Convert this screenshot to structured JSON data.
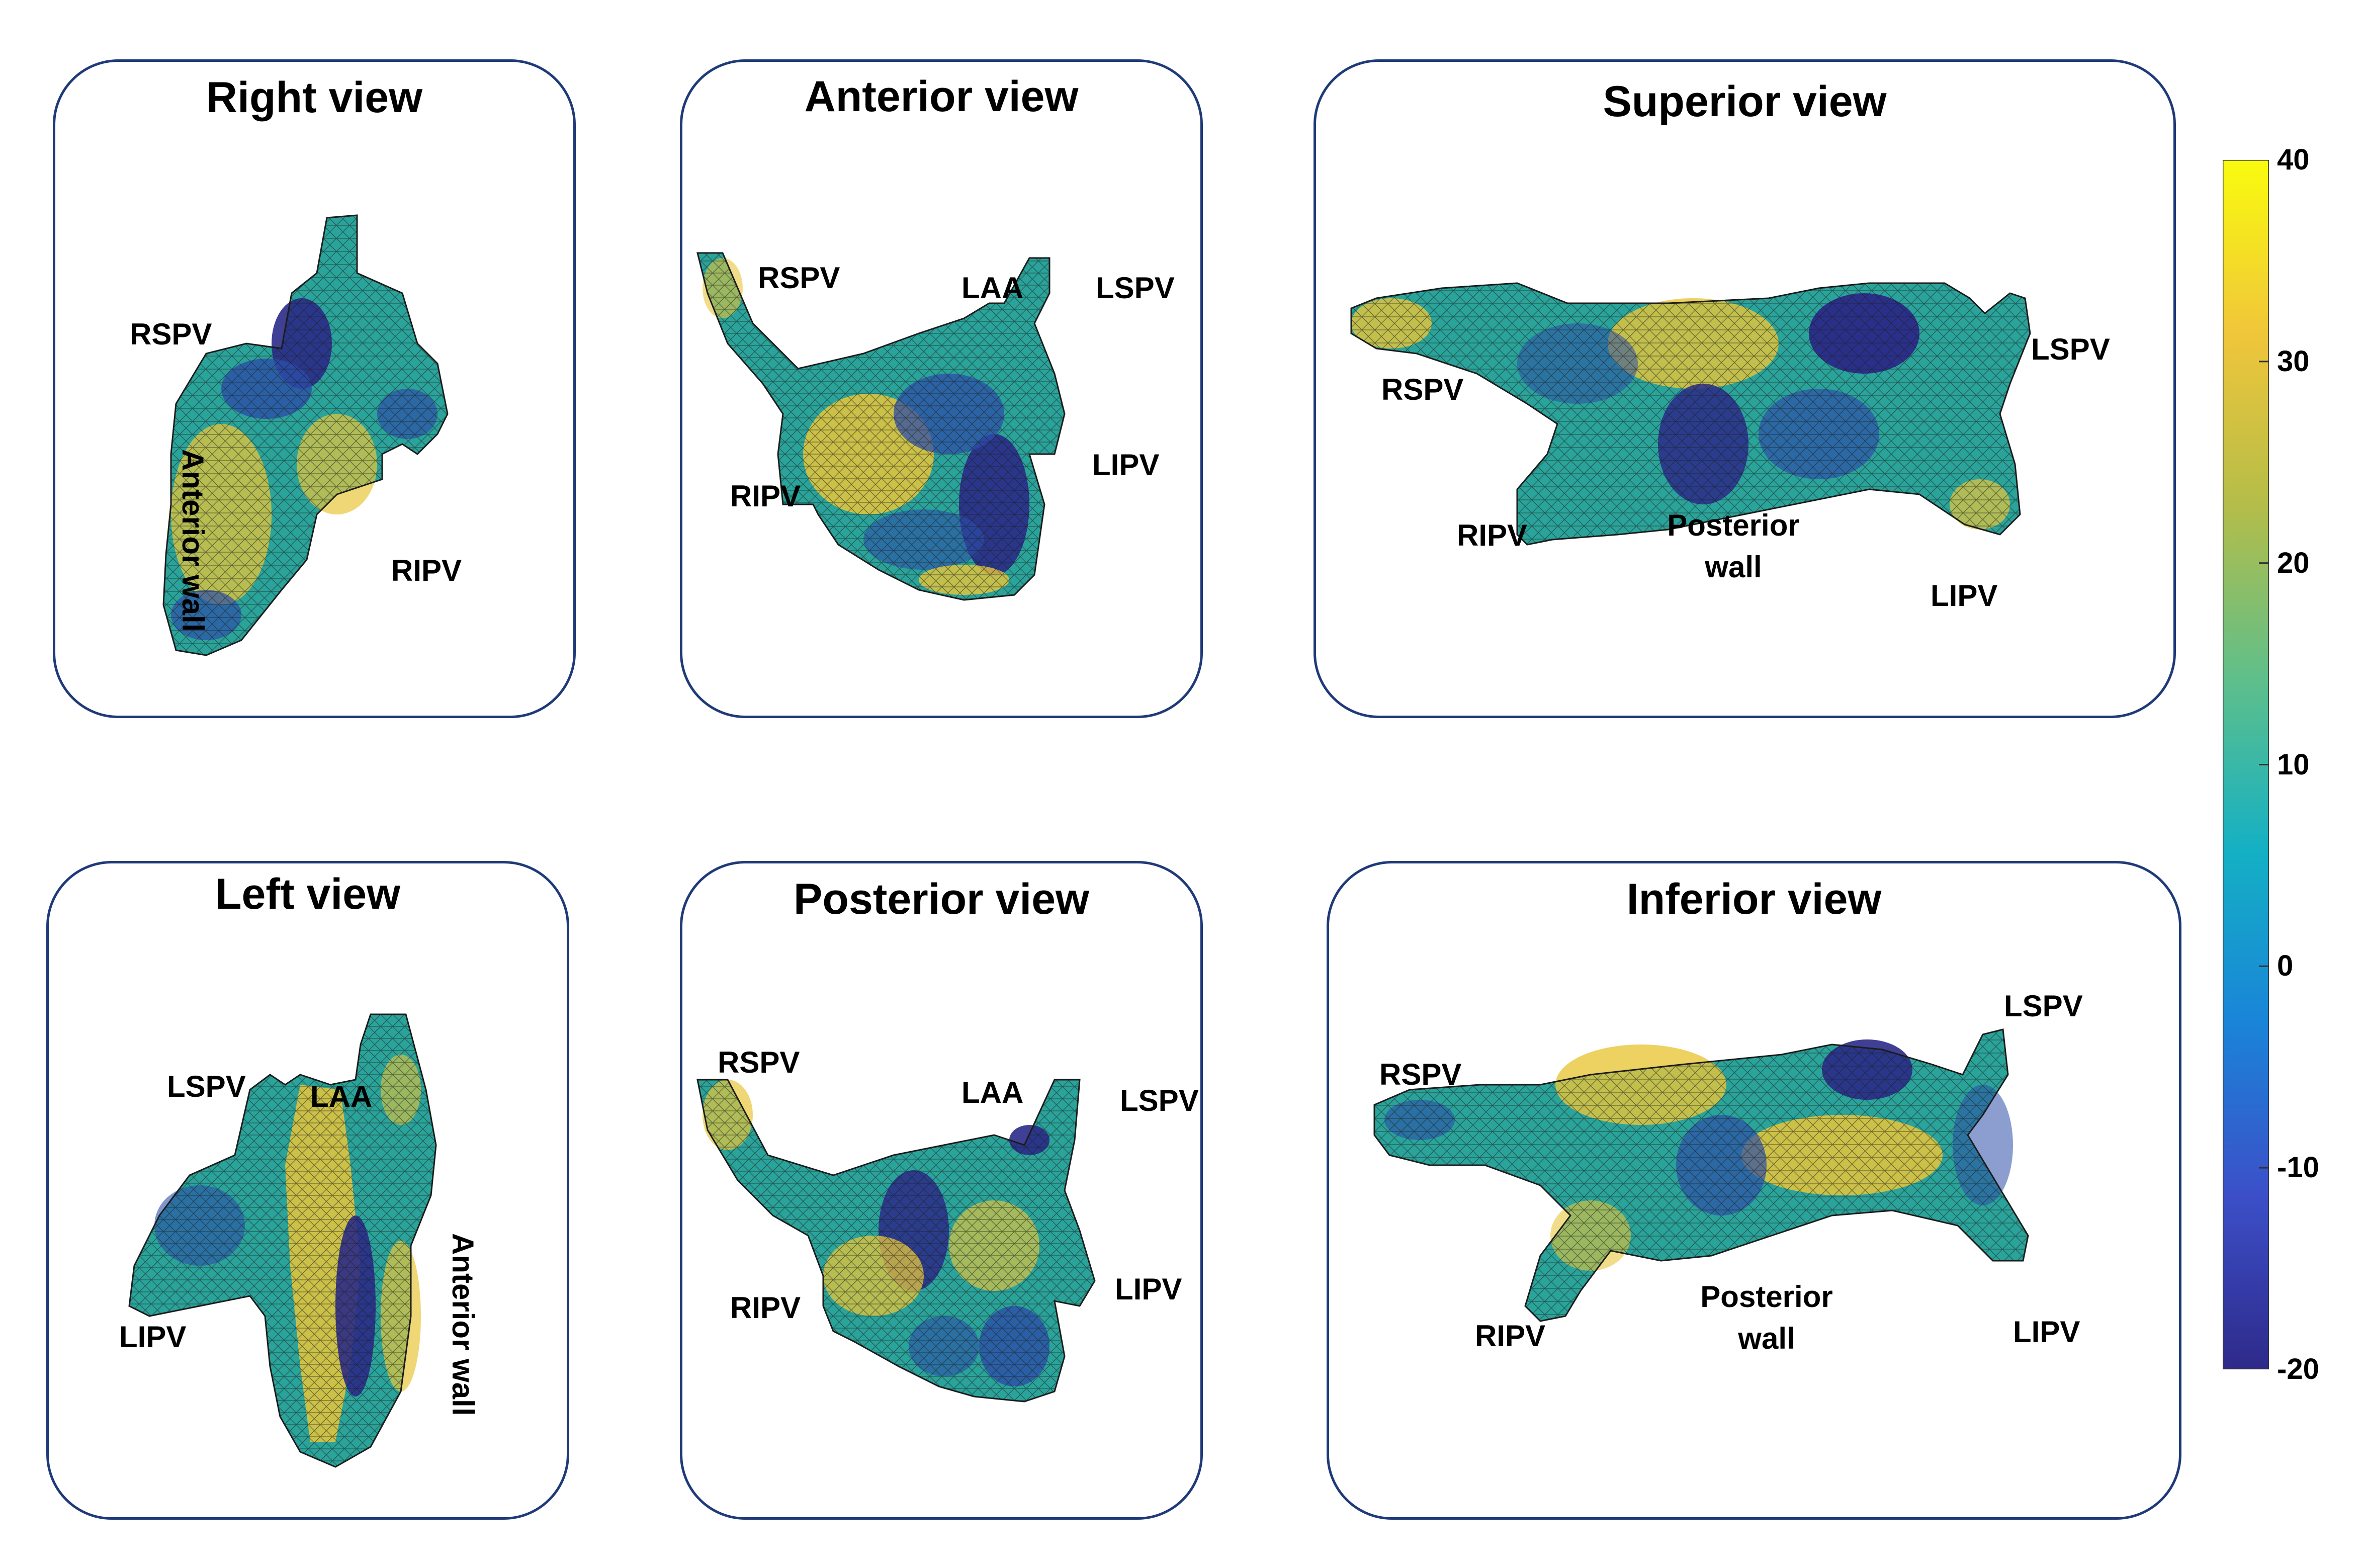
{
  "panels": {
    "right": {
      "title": "Right view",
      "labels": {
        "rspv": "RSPV",
        "ripv": "RIPV",
        "wall": "Anterior wall"
      }
    },
    "anterior": {
      "title": "Anterior view",
      "labels": {
        "rspv": "RSPV",
        "laa": "LAA",
        "lspv": "LSPV",
        "ripv": "RIPV",
        "lipv": "LIPV"
      }
    },
    "superior": {
      "title": "Superior view",
      "labels": {
        "rspv": "RSPV",
        "lspv": "LSPV",
        "ripv": "RIPV",
        "lipv": "LIPV",
        "wall1": "Posterior",
        "wall2": "wall"
      }
    },
    "left": {
      "title": "Left view",
      "labels": {
        "lspv": "LSPV",
        "laa": "LAA",
        "lipv": "LIPV",
        "wall": "Anterior wall"
      }
    },
    "posterior": {
      "title": "Posterior view",
      "labels": {
        "rspv": "RSPV",
        "laa": "LAA",
        "lspv": "LSPV",
        "ripv": "RIPV",
        "lipv": "LIPV"
      }
    },
    "inferior": {
      "title": "Inferior view",
      "labels": {
        "rspv": "RSPV",
        "lspv": "LSPV",
        "ripv": "RIPV",
        "lipv": "LIPV",
        "wall1": "Posterior",
        "wall2": "wall"
      }
    }
  },
  "colorbar": {
    "ticks": [
      "40",
      "30",
      "20",
      "10",
      "0",
      "-10",
      "-20"
    ],
    "colors": [
      "#f9fb0e",
      "#f0c63a",
      "#b4bd49",
      "#5fbf8a",
      "#14b0c4",
      "#1a84d8",
      "#3c4fc8",
      "#2e2a8a"
    ]
  },
  "colors": {
    "panel_border": "#1f3a78",
    "mesh_yellow": "#e8c63a",
    "mesh_teal": "#2aa39a",
    "mesh_blue": "#2c4ea8",
    "mesh_navy": "#2a2a88"
  }
}
